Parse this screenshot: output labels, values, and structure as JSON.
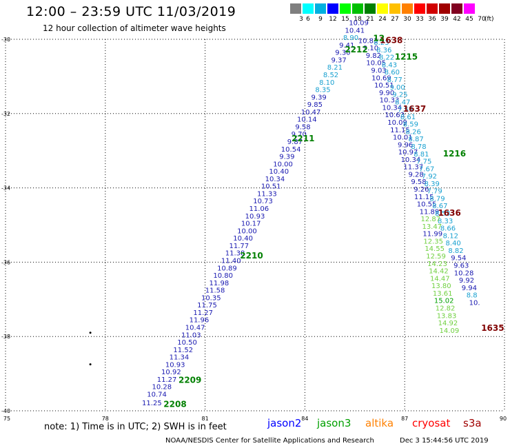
{
  "header": {
    "title": "12:00 – 23:59 UTC 11/03/2019",
    "subtitle": "12 hour collection of altimeter wave heights"
  },
  "legend": {
    "unit": "(ft)",
    "bins": [
      {
        "label": "3",
        "color": "#7f7f7f"
      },
      {
        "label": "6",
        "color": "#00ffff"
      },
      {
        "label": "9",
        "color": "#00b0e0"
      },
      {
        "label": "12",
        "color": "#0000ff"
      },
      {
        "label": "15",
        "color": "#00ff00"
      },
      {
        "label": "18",
        "color": "#00c000"
      },
      {
        "label": "21",
        "color": "#008000"
      },
      {
        "label": "24",
        "color": "#ffff00"
      },
      {
        "label": "27",
        "color": "#ffc000"
      },
      {
        "label": "30",
        "color": "#ff8000"
      },
      {
        "label": "33",
        "color": "#ff0000"
      },
      {
        "label": "36",
        "color": "#d00000"
      },
      {
        "label": "39",
        "color": "#a00000"
      },
      {
        "label": "42",
        "color": "#800020"
      },
      {
        "label": "45",
        "color": "#ff00ff"
      },
      {
        "label": "70",
        "color": "#ffffff"
      }
    ]
  },
  "map": {
    "lon_min": 75,
    "lon_max": 90,
    "lat_min": -40,
    "lat_max": -30,
    "lon_ticks": [
      75,
      78,
      81,
      84,
      87,
      90
    ],
    "lat_ticks": [
      -30,
      -32,
      -34,
      -36,
      -38,
      -40
    ]
  },
  "tracks": [
    {
      "id": "ascending",
      "points": [
        {
          "lon": 79.4,
          "lat": -39.85,
          "swh": "11.25",
          "color": "#1818b0"
        },
        {
          "lon": 79.55,
          "lat": -39.62,
          "swh": "10.74",
          "color": "#1818b0"
        },
        {
          "lon": 79.7,
          "lat": -39.42,
          "swh": "10.28",
          "color": "#1818b0"
        },
        {
          "lon": 79.85,
          "lat": -39.22,
          "swh": "11.27",
          "color": "#1818b0"
        },
        {
          "lon": 79.98,
          "lat": -39.02,
          "swh": "10.92",
          "color": "#1818b0"
        },
        {
          "lon": 80.1,
          "lat": -38.82,
          "swh": "10.93",
          "color": "#1818b0"
        },
        {
          "lon": 80.22,
          "lat": -38.62,
          "swh": "11.34",
          "color": "#1818b0"
        },
        {
          "lon": 80.34,
          "lat": -38.42,
          "swh": "11.52",
          "color": "#1818b0"
        },
        {
          "lon": 80.46,
          "lat": -38.22,
          "swh": "10.50",
          "color": "#1818b0"
        },
        {
          "lon": 80.58,
          "lat": -38.02,
          "swh": "11.03",
          "color": "#1818b0"
        },
        {
          "lon": 80.7,
          "lat": -37.82,
          "swh": "10.47",
          "color": "#1818b0"
        },
        {
          "lon": 80.82,
          "lat": -37.62,
          "swh": "11.96",
          "color": "#1818b0"
        },
        {
          "lon": 80.94,
          "lat": -37.42,
          "swh": "11.27",
          "color": "#1818b0"
        },
        {
          "lon": 81.06,
          "lat": -37.22,
          "swh": "11.75",
          "color": "#1818b0"
        },
        {
          "lon": 81.18,
          "lat": -37.02,
          "swh": "10.35",
          "color": "#1818b0"
        },
        {
          "lon": 81.3,
          "lat": -36.82,
          "swh": "11.58",
          "color": "#1818b0"
        },
        {
          "lon": 81.42,
          "lat": -36.62,
          "swh": "11.98",
          "color": "#1818b0"
        },
        {
          "lon": 81.54,
          "lat": -36.42,
          "swh": "10.80",
          "color": "#1818b0"
        },
        {
          "lon": 81.66,
          "lat": -36.22,
          "swh": "10.89",
          "color": "#1818b0"
        },
        {
          "lon": 81.78,
          "lat": -36.02,
          "swh": "11.40",
          "color": "#1818b0"
        },
        {
          "lon": 81.9,
          "lat": -35.82,
          "swh": "11.38",
          "color": "#1818b0"
        },
        {
          "lon": 82.02,
          "lat": -35.62,
          "swh": "11.77",
          "color": "#1818b0"
        },
        {
          "lon": 82.14,
          "lat": -35.42,
          "swh": "10.40",
          "color": "#1818b0"
        },
        {
          "lon": 82.26,
          "lat": -35.22,
          "swh": "10.00",
          "color": "#1818b0"
        },
        {
          "lon": 82.38,
          "lat": -35.02,
          "swh": "10.17",
          "color": "#1818b0"
        },
        {
          "lon": 82.5,
          "lat": -34.82,
          "swh": "10.93",
          "color": "#1818b0"
        },
        {
          "lon": 82.62,
          "lat": -34.62,
          "swh": "11.06",
          "color": "#1818b0"
        },
        {
          "lon": 82.74,
          "lat": -34.42,
          "swh": "10.73",
          "color": "#1818b0"
        },
        {
          "lon": 82.86,
          "lat": -34.22,
          "swh": "11.33",
          "color": "#1818b0"
        },
        {
          "lon": 82.98,
          "lat": -34.02,
          "swh": "10.51",
          "color": "#1818b0"
        },
        {
          "lon": 83.1,
          "lat": -33.82,
          "swh": "10.34",
          "color": "#1818b0"
        },
        {
          "lon": 83.22,
          "lat": -33.62,
          "swh": "10.40",
          "color": "#1818b0"
        },
        {
          "lon": 83.34,
          "lat": -33.42,
          "swh": "10.00",
          "color": "#1818b0"
        },
        {
          "lon": 83.46,
          "lat": -33.22,
          "swh": "9.39",
          "color": "#1818b0"
        },
        {
          "lon": 83.58,
          "lat": -33.02,
          "swh": "10.54",
          "color": "#1818b0"
        },
        {
          "lon": 83.7,
          "lat": -32.82,
          "swh": "9.87",
          "color": "#1818b0"
        },
        {
          "lon": 83.82,
          "lat": -32.62,
          "swh": "9.70",
          "color": "#1818b0"
        },
        {
          "lon": 83.94,
          "lat": -32.42,
          "swh": "9.58",
          "color": "#1818b0"
        },
        {
          "lon": 84.06,
          "lat": -32.22,
          "swh": "10.14",
          "color": "#1818b0"
        },
        {
          "lon": 84.18,
          "lat": -32.02,
          "swh": "10.47",
          "color": "#1818b0"
        },
        {
          "lon": 84.3,
          "lat": -31.82,
          "swh": "9.85",
          "color": "#1818b0"
        },
        {
          "lon": 84.42,
          "lat": -31.62,
          "swh": "9.39",
          "color": "#1818b0"
        },
        {
          "lon": 84.54,
          "lat": -31.42,
          "swh": "8.35",
          "color": "#18a0d0"
        },
        {
          "lon": 84.66,
          "lat": -31.22,
          "swh": "8.10",
          "color": "#18a0d0"
        },
        {
          "lon": 84.78,
          "lat": -31.02,
          "swh": "8.52",
          "color": "#18a0d0"
        },
        {
          "lon": 84.9,
          "lat": -30.82,
          "swh": "8.21",
          "color": "#18a0d0"
        },
        {
          "lon": 85.02,
          "lat": -30.62,
          "swh": "9.37",
          "color": "#1818b0"
        },
        {
          "lon": 85.14,
          "lat": -30.42,
          "swh": "9.30",
          "color": "#1818b0"
        },
        {
          "lon": 85.26,
          "lat": -30.22,
          "swh": "9.41",
          "color": "#1818b0"
        },
        {
          "lon": 85.38,
          "lat": -30.02,
          "swh": "8.90",
          "color": "#18a0d0"
        },
        {
          "lon": 85.5,
          "lat": -29.82,
          "swh": "10.41",
          "color": "#1818b0"
        },
        {
          "lon": 85.62,
          "lat": -29.62,
          "swh": "10.09",
          "color": "#1818b0"
        }
      ]
    },
    {
      "id": "descending-a",
      "points": [
        {
          "lon": 85.9,
          "lat": -30.1,
          "swh": "10.83",
          "color": "#1818b0"
        },
        {
          "lon": 85.98,
          "lat": -30.3,
          "swh": "9.10",
          "color": "#1818b0"
        },
        {
          "lon": 86.06,
          "lat": -30.5,
          "swh": "9.82",
          "color": "#1818b0"
        },
        {
          "lon": 86.14,
          "lat": -30.7,
          "swh": "10.05",
          "color": "#1818b0"
        },
        {
          "lon": 86.22,
          "lat": -30.9,
          "swh": "9.03",
          "color": "#1818b0"
        },
        {
          "lon": 86.3,
          "lat": -31.1,
          "swh": "10.69",
          "color": "#1818b0"
        },
        {
          "lon": 86.38,
          "lat": -31.3,
          "swh": "10.51",
          "color": "#1818b0"
        },
        {
          "lon": 86.46,
          "lat": -31.5,
          "swh": "9.90",
          "color": "#1818b0"
        },
        {
          "lon": 86.54,
          "lat": -31.7,
          "swh": "10.33",
          "color": "#1818b0"
        },
        {
          "lon": 86.62,
          "lat": -31.9,
          "swh": "10.34",
          "color": "#1818b0"
        },
        {
          "lon": 86.7,
          "lat": -32.1,
          "swh": "10.63",
          "color": "#1818b0"
        },
        {
          "lon": 86.78,
          "lat": -32.3,
          "swh": "10.09",
          "color": "#1818b0"
        },
        {
          "lon": 86.86,
          "lat": -32.5,
          "swh": "11.15",
          "color": "#1818b0"
        },
        {
          "lon": 86.94,
          "lat": -32.7,
          "swh": "10.01",
          "color": "#1818b0"
        },
        {
          "lon": 87.02,
          "lat": -32.9,
          "swh": "9.96",
          "color": "#1818b0"
        },
        {
          "lon": 87.1,
          "lat": -33.1,
          "swh": "10.97",
          "color": "#1818b0"
        },
        {
          "lon": 87.18,
          "lat": -33.3,
          "swh": "10.34",
          "color": "#1818b0"
        },
        {
          "lon": 87.26,
          "lat": -33.5,
          "swh": "11.37",
          "color": "#1818b0"
        },
        {
          "lon": 87.34,
          "lat": -33.7,
          "swh": "9.28",
          "color": "#1818b0"
        },
        {
          "lon": 87.42,
          "lat": -33.9,
          "swh": "9.58",
          "color": "#1818b0"
        },
        {
          "lon": 87.5,
          "lat": -34.1,
          "swh": "9.26",
          "color": "#1818b0"
        },
        {
          "lon": 87.58,
          "lat": -34.3,
          "swh": "11.15",
          "color": "#1818b0"
        },
        {
          "lon": 87.66,
          "lat": -34.5,
          "swh": "10.55",
          "color": "#1818b0"
        },
        {
          "lon": 87.74,
          "lat": -34.7,
          "swh": "11.89",
          "color": "#1818b0"
        }
      ]
    },
    {
      "id": "descending-b",
      "points": [
        {
          "lon": 86.3,
          "lat": -30.15,
          "swh": "8.23",
          "color": "#18a0d0"
        },
        {
          "lon": 86.38,
          "lat": -30.35,
          "swh": "8.36",
          "color": "#18a0d0"
        },
        {
          "lon": 86.46,
          "lat": -30.55,
          "swh": "8.22",
          "color": "#18a0d0"
        },
        {
          "lon": 86.54,
          "lat": -30.75,
          "swh": "8.43",
          "color": "#18a0d0"
        },
        {
          "lon": 86.62,
          "lat": -30.95,
          "swh": "8.60",
          "color": "#18a0d0"
        },
        {
          "lon": 86.7,
          "lat": -31.15,
          "swh": "8.77",
          "color": "#18a0d0"
        },
        {
          "lon": 86.78,
          "lat": -31.35,
          "swh": "9.00",
          "color": "#18a0d0"
        },
        {
          "lon": 86.86,
          "lat": -31.55,
          "swh": "9.25",
          "color": "#18a0d0"
        },
        {
          "lon": 86.94,
          "lat": -31.75,
          "swh": "8.47",
          "color": "#18a0d0"
        },
        {
          "lon": 87.02,
          "lat": -31.95,
          "swh": "7.55",
          "color": "#18a0d0"
        },
        {
          "lon": 87.1,
          "lat": -32.15,
          "swh": "8.61",
          "color": "#18a0d0"
        },
        {
          "lon": 87.18,
          "lat": -32.35,
          "swh": "8.59",
          "color": "#18a0d0"
        },
        {
          "lon": 87.26,
          "lat": -32.55,
          "swh": "8.26",
          "color": "#18a0d0"
        },
        {
          "lon": 87.34,
          "lat": -32.75,
          "swh": "8.87",
          "color": "#18a0d0"
        },
        {
          "lon": 87.42,
          "lat": -32.95,
          "swh": "8.78",
          "color": "#18a0d0"
        },
        {
          "lon": 87.5,
          "lat": -33.15,
          "swh": "8.81",
          "color": "#18a0d0"
        },
        {
          "lon": 87.58,
          "lat": -33.35,
          "swh": "7.75",
          "color": "#18a0d0"
        },
        {
          "lon": 87.66,
          "lat": -33.55,
          "swh": "7.67",
          "color": "#18a0d0"
        },
        {
          "lon": 87.74,
          "lat": -33.75,
          "swh": "7.92",
          "color": "#18a0d0"
        },
        {
          "lon": 87.82,
          "lat": -33.95,
          "swh": "8.39",
          "color": "#18a0d0"
        },
        {
          "lon": 87.9,
          "lat": -34.15,
          "swh": "7.79",
          "color": "#18a0d0"
        },
        {
          "lon": 87.98,
          "lat": -34.35,
          "swh": "8.79",
          "color": "#18a0d0"
        },
        {
          "lon": 88.06,
          "lat": -34.55,
          "swh": "8.67",
          "color": "#18a0d0"
        },
        {
          "lon": 88.14,
          "lat": -34.75,
          "swh": "8.53",
          "color": "#18a0d0"
        },
        {
          "lon": 88.22,
          "lat": -34.95,
          "swh": "8.33",
          "color": "#18a0d0"
        },
        {
          "lon": 88.3,
          "lat": -35.15,
          "swh": "8.66",
          "color": "#18a0d0"
        },
        {
          "lon": 88.38,
          "lat": -35.35,
          "swh": "8.12",
          "color": "#18a0d0"
        },
        {
          "lon": 88.46,
          "lat": -35.55,
          "swh": "8.40",
          "color": "#18a0d0"
        },
        {
          "lon": 88.54,
          "lat": -35.75,
          "swh": "8.82",
          "color": "#18a0d0"
        },
        {
          "lon": 88.62,
          "lat": -35.95,
          "swh": "9.54",
          "color": "#1818b0"
        },
        {
          "lon": 88.7,
          "lat": -36.15,
          "swh": "9.63",
          "color": "#1818b0"
        },
        {
          "lon": 88.78,
          "lat": -36.35,
          "swh": "10.28",
          "color": "#1818b0"
        },
        {
          "lon": 88.86,
          "lat": -36.55,
          "swh": "9.92",
          "color": "#1818b0"
        },
        {
          "lon": 88.94,
          "lat": -36.75,
          "swh": "9.94",
          "color": "#1818b0"
        },
        {
          "lon": 89.02,
          "lat": -36.95,
          "swh": "8.8",
          "color": "#18a0d0"
        },
        {
          "lon": 89.1,
          "lat": -37.15,
          "swh": "10.",
          "color": "#1818b0"
        }
      ]
    },
    {
      "id": "descending-green",
      "points": [
        {
          "lon": 87.78,
          "lat": -34.9,
          "swh": "12.87",
          "color": "#70d040"
        },
        {
          "lon": 87.82,
          "lat": -35.1,
          "swh": "13.47",
          "color": "#70d040"
        },
        {
          "lon": 87.84,
          "lat": -35.3,
          "swh": "11.99",
          "color": "#1818b0"
        },
        {
          "lon": 87.86,
          "lat": -35.5,
          "swh": "12.35",
          "color": "#70d040"
        },
        {
          "lon": 87.9,
          "lat": -35.7,
          "swh": "14.55",
          "color": "#70d040"
        },
        {
          "lon": 87.94,
          "lat": -35.9,
          "swh": "12.59",
          "color": "#70d040"
        },
        {
          "lon": 87.98,
          "lat": -36.1,
          "swh": "14.23",
          "color": "#70d040"
        },
        {
          "lon": 88.02,
          "lat": -36.3,
          "swh": "14.42",
          "color": "#70d040"
        },
        {
          "lon": 88.06,
          "lat": -36.5,
          "swh": "14.47",
          "color": "#70d040"
        },
        {
          "lon": 88.1,
          "lat": -36.7,
          "swh": "13.80",
          "color": "#70d040"
        },
        {
          "lon": 88.14,
          "lat": -36.9,
          "swh": "13.61",
          "color": "#70d040"
        },
        {
          "lon": 88.18,
          "lat": -37.1,
          "swh": "15.02",
          "color": "#00a000"
        },
        {
          "lon": 88.22,
          "lat": -37.3,
          "swh": "12.82",
          "color": "#70d040"
        },
        {
          "lon": 88.26,
          "lat": -37.5,
          "swh": "13.83",
          "color": "#70d040"
        },
        {
          "lon": 88.3,
          "lat": -37.7,
          "swh": "14.92",
          "color": "#70d040"
        },
        {
          "lon": 88.34,
          "lat": -37.9,
          "swh": "14.09",
          "color": "#70d040"
        }
      ]
    }
  ],
  "time_labels": [
    {
      "text": "2208",
      "lon": 79.75,
      "lat": -39.9,
      "color": "#008000"
    },
    {
      "text": "2209",
      "lon": 80.2,
      "lat": -39.25,
      "color": "#008000"
    },
    {
      "text": "2210",
      "lon": 82.05,
      "lat": -35.9,
      "color": "#008000"
    },
    {
      "text": "2211",
      "lon": 83.6,
      "lat": -32.75,
      "color": "#008000"
    },
    {
      "text": "2212",
      "lon": 85.2,
      "lat": -30.35,
      "color": "#008000"
    },
    {
      "text": "1215",
      "lon": 86.7,
      "lat": -30.55,
      "color": "#008000"
    },
    {
      "text": "1216",
      "lon": 88.15,
      "lat": -33.15,
      "color": "#008000"
    },
    {
      "text": "1637",
      "lon": 86.95,
      "lat": -31.95,
      "color": "#800000"
    },
    {
      "text": "1636",
      "lon": 88.0,
      "lat": -34.75,
      "color": "#800000"
    },
    {
      "text": "1635",
      "lon": 89.3,
      "lat": -37.85,
      "color": "#800000"
    },
    {
      "text": "1638",
      "lon": 86.25,
      "lat": -30.1,
      "color": "#800000"
    },
    {
      "text": "12",
      "lon": 86.05,
      "lat": -30.05,
      "color": "#008000"
    }
  ],
  "land_dots": [
    {
      "lon": 77.55,
      "lat": -37.9
    },
    {
      "lon": 77.55,
      "lat": -38.75
    }
  ],
  "footer": {
    "note": "note:  1) Time is in UTC;  2) SWH is in feet",
    "missions": [
      {
        "name": "jason2",
        "color": "#0000ff"
      },
      {
        "name": "jason3",
        "color": "#00a000"
      },
      {
        "name": "altika",
        "color": "#ff8000"
      },
      {
        "name": "cryosat",
        "color": "#ff0000"
      },
      {
        "name": "s3a",
        "color": "#a00000"
      }
    ],
    "credit": "NOAA/NESDIS Center for Satellite Applications and Research",
    "timestamp": "Dec  3 15:44:56 UTC 2019"
  }
}
